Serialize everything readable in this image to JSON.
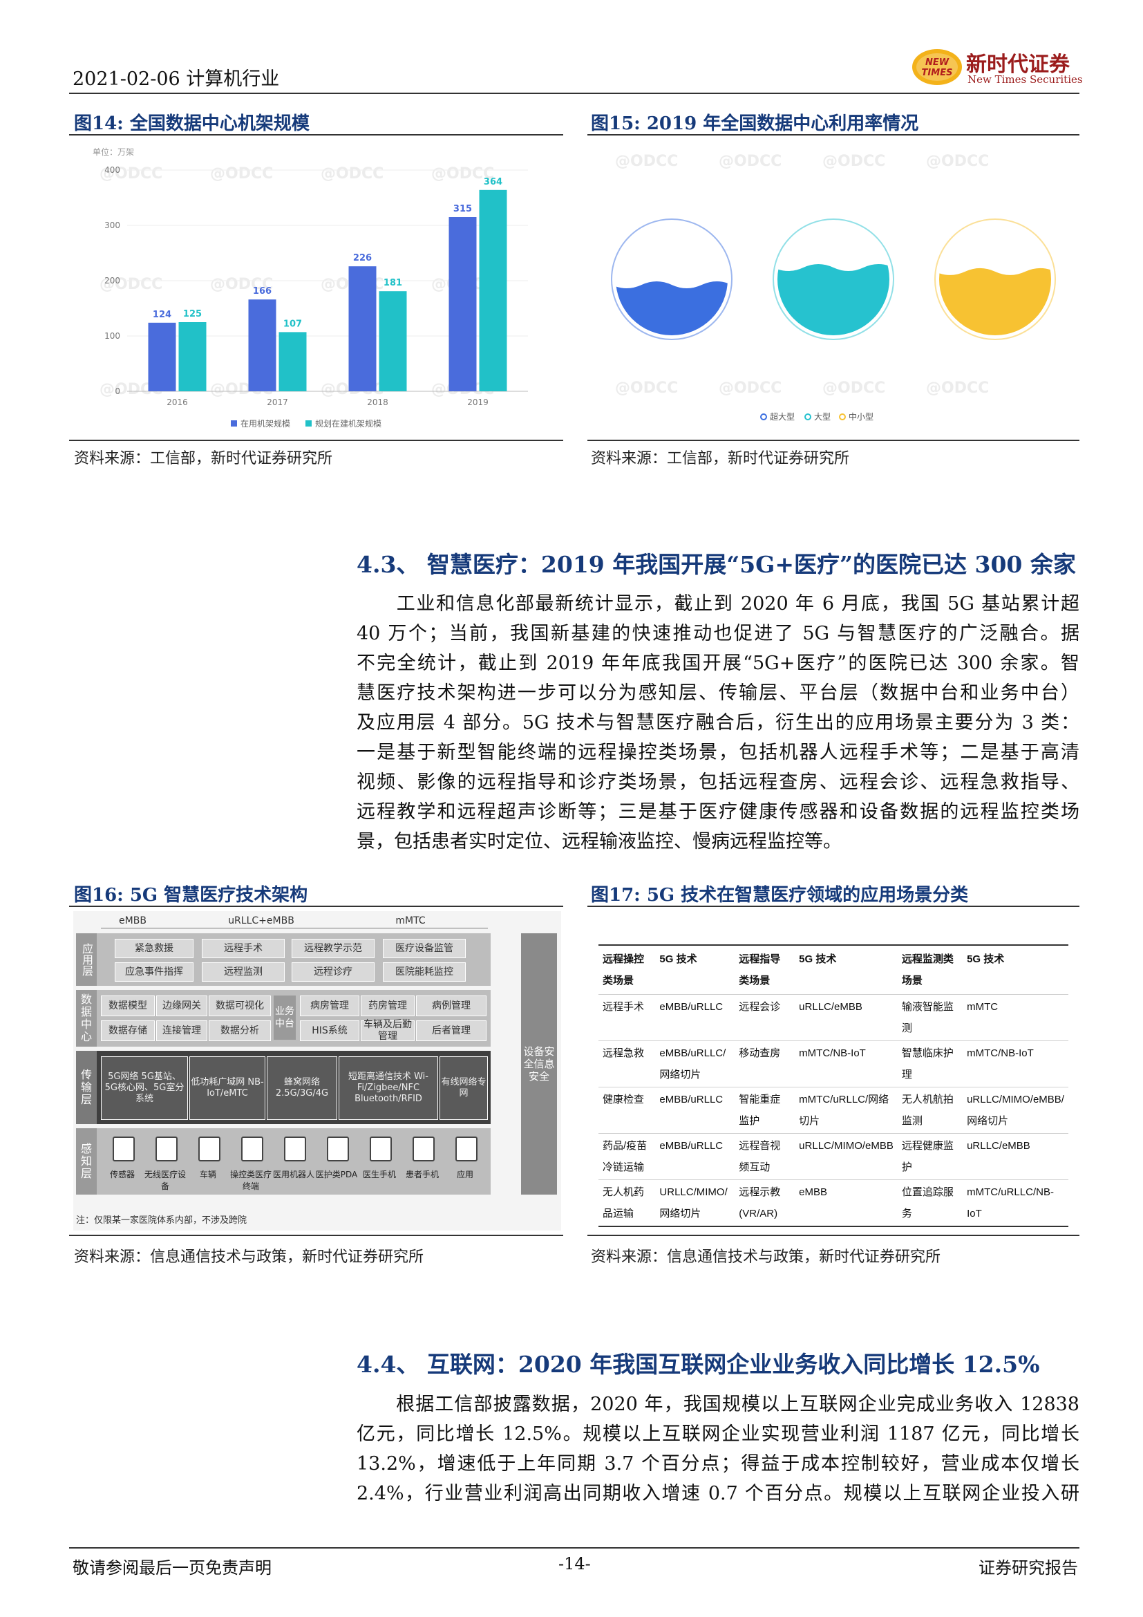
{
  "header": {
    "date_industry": "2021-02-06 计算机行业",
    "logo_cn": "新时代证券",
    "logo_en": "New Times Securities",
    "logo_mark": "NEW TIMES"
  },
  "fig14": {
    "title": "图14:   全国数据中心机架规模",
    "source": "资料来源：工信部，新时代证券研究所",
    "watermark": "ODCC"
  },
  "fig15": {
    "title": "图15:   2019 年全国数据中心利用率情况",
    "source": "资料来源：工信部，新时代证券研究所",
    "watermark": "ODCC"
  },
  "chart_data": [
    {
      "type": "bar",
      "unit_label": "单位：万架",
      "categories": [
        "2016",
        "2017",
        "2018",
        "2019"
      ],
      "series": [
        {
          "name": "在用机架规模",
          "values": [
            124,
            166,
            226,
            315
          ],
          "color": "#4a6cdc"
        },
        {
          "name": "规划在建机架规模",
          "values": [
            125,
            107,
            181,
            364
          ],
          "color": "#21c1c8"
        }
      ],
      "ylim": [
        0,
        400
      ],
      "yticks": [
        0,
        100,
        200,
        300,
        400
      ],
      "legend": "bottom"
    },
    {
      "type": "pie",
      "categories": [
        "超大型",
        "大型",
        "中小型"
      ],
      "values": [
        45.4,
        59.8,
        56.4
      ],
      "labels": [
        "45.4%",
        "59.8%",
        "56.4%"
      ],
      "colors": [
        "#3b6fe0",
        "#26c2cf",
        "#f7c232"
      ],
      "legend": "bottom"
    }
  ],
  "sec43": {
    "title": "4.3、 智慧医疗：2019 年我国开展“5G+医疗”的医院已达 300 余家",
    "lines": [
      "工业和信息化部最新统计显示，截止到 2020 年 6 月底，我国 5G 基站累计超",
      "40 万个；当前，我国新基建的快速推动也促进了 5G 与智慧医疗的广泛融合。据",
      "不完全统计，截止到 2019 年年底我国开展“5G+医疗”的医院已达 300 余家。智",
      "慧医疗技术架构进一步可以分为感知层、传输层、平台层（数据中台和业务中台）",
      "及应用层 4 部分。5G 技术与智慧医疗融合后，衍生出的应用场景主要分为 3 类：",
      "一是基于新型智能终端的远程操控类场景，包括机器人远程手术等；二是基于高清",
      "视频、影像的远程指导和诊疗类场景，包括远程查房、远程会诊、远程急救指导、",
      "远程教学和远程超声诊断等；三是基于医疗健康传感器和设备数据的远程监控类场",
      "景，包括患者实时定位、远程输液监控、慢病远程监控等。"
    ]
  },
  "fig16": {
    "title": "图16:   5G 智慧医疗技术架构",
    "source": "资料来源：信息通信技术与政策，新时代证券研究所",
    "cols": [
      "eMBB",
      "uRLLC+eMBB",
      "mMTC"
    ],
    "layers": [
      "应用层",
      "数据中心",
      "传输层",
      "感知层"
    ],
    "right": "设备安全信息安全",
    "app_boxes": [
      "紧急救援",
      "远程手术",
      "远程教学示范",
      "医疗设备监管",
      "应急事件指挥",
      "远程监测",
      "远程诊疗",
      "医院能耗监控"
    ],
    "dc_boxes": [
      "数据模型",
      "边缘网关",
      "数据可视化",
      "数据存储",
      "连接管理",
      "数据分析"
    ],
    "business": "业务中台",
    "biz_boxes": [
      "病房管理",
      "药房管理",
      "病例管理",
      "HIS系统",
      "车辆及后勤管理",
      "后者管理"
    ],
    "net_boxes": [
      "5G网络 5G基站、5G核心网、5G室分系统",
      "低功耗广域网 NB-IoT/eMTC",
      "蜂窝网络 2.5G/3G/4G",
      "短距离通信技术 Wi-Fi/Zigbee/NFC Bluetooth/RFID",
      "有线网络专网"
    ],
    "sensors": [
      "传感器",
      "无线医疗设备",
      "车辆",
      "操控类医疗终端",
      "医用机器人",
      "医护类PDA",
      "医生手机",
      "患者手机",
      "应用"
    ],
    "note": "注：仅限某一家医院体系内部，不涉及跨院"
  },
  "fig17": {
    "title": "图17:   5G 技术在智慧医疗领域的应用场景分类",
    "source": "资料来源：信息通信技术与政策，新时代证券研究所",
    "headers": [
      "远程操控类场景",
      "5G 技术",
      "远程指导类场景",
      "5G 技术",
      "远程监测类场景",
      "5G 技术"
    ],
    "rows": [
      [
        "远程手术",
        "eMBB/uRLLC",
        "远程会诊",
        "uRLLC/eMBB",
        "输液智能监测",
        "mMTC"
      ],
      [
        "远程急救",
        "eMBB/uRLLC/网络切片",
        "移动查房",
        "mMTC/NB-IoT",
        "智慧临床护理",
        "mMTC/NB-IoT"
      ],
      [
        "健康检查",
        "eMBB/uRLLC",
        "智能重症监护",
        "mMTC/uRLLC/网络切片",
        "无人机航拍监测",
        "uRLLC/MIMO/eMBB/网络切片"
      ],
      [
        "药品/疫苗冷链运输",
        "eMBB/uRLLC",
        "远程音视频互动",
        "uRLLC/MIMO/eMBB",
        "远程健康监护",
        "uRLLC/eMBB"
      ],
      [
        "无人机药品运输",
        "URLLC/MIMO/网络切片",
        "远程示教(VR/AR)",
        "eMBB",
        "位置追踪服务",
        "mMTC/uRLLC/NB-IoT"
      ]
    ]
  },
  "sec44": {
    "title": "4.4、 互联网：2020 年我国互联网企业业务收入同比增长 12.5%",
    "lines": [
      "根据工信部披露数据，2020 年，我国规模以上互联网企业完成业务收入 12838",
      "亿元，同比增长 12.5%。规模以上互联网企业实现营业利润 1187 亿元，同比增长",
      "13.2%，增速低于上年同期 3.7 个百分点；得益于成本控制较好，营业成本仅增长",
      "2.4%，行业营业利润高出同期收入增速 0.7 个百分点。规模以上互联网企业投入研"
    ]
  },
  "footer": {
    "left": "敬请参阅最后一页免责声明",
    "center": "-14-",
    "right": "证券研究报告"
  }
}
